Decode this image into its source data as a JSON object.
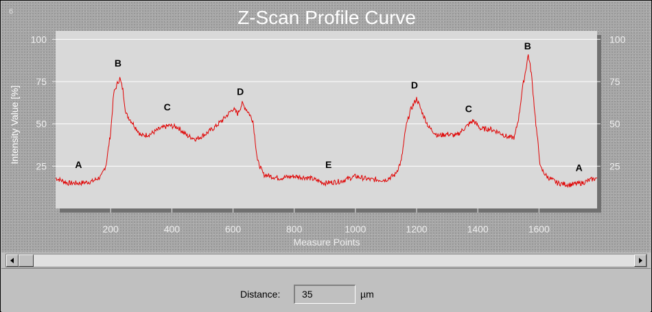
{
  "window": {
    "number": "6"
  },
  "chart_data": {
    "type": "line",
    "title": "Z-Scan Profile Curve",
    "xlabel": "Measure Points",
    "ylabel": "Intensity Value [%]",
    "xlim": [
      20,
      1790
    ],
    "ylim": [
      0,
      105
    ],
    "xticks": [
      200,
      400,
      600,
      800,
      1000,
      1200,
      1400,
      1600
    ],
    "yticks": [
      25,
      50,
      75,
      100
    ],
    "grid": true,
    "right_axis": true,
    "series": [
      {
        "color": "#e00000",
        "x": [
          20,
          60,
          100,
          140,
          170,
          185,
          200,
          210,
          220,
          230,
          240,
          250,
          270,
          300,
          330,
          360,
          390,
          420,
          450,
          480,
          510,
          540,
          570,
          600,
          615,
          630,
          650,
          665,
          680,
          700,
          750,
          800,
          850,
          900,
          950,
          1000,
          1050,
          1100,
          1130,
          1150,
          1165,
          1180,
          1200,
          1220,
          1240,
          1270,
          1300,
          1330,
          1360,
          1385,
          1410,
          1440,
          1470,
          1500,
          1520,
          1535,
          1545,
          1555,
          1565,
          1575,
          1590,
          1605,
          1625,
          1660,
          1700,
          1740,
          1770,
          1790
        ],
        "y": [
          18,
          15,
          15,
          16,
          19,
          26,
          45,
          68,
          73,
          77,
          70,
          56,
          51,
          43,
          44,
          47,
          49,
          48,
          43,
          41,
          44,
          48,
          53,
          59,
          56,
          62,
          57,
          52,
          28,
          20,
          18,
          19,
          18,
          15,
          16,
          19,
          17,
          17,
          20,
          28,
          48,
          58,
          65,
          56,
          48,
          43,
          44,
          43,
          48,
          52,
          47,
          47,
          45,
          42,
          42,
          55,
          70,
          80,
          91,
          80,
          50,
          24,
          19,
          15,
          14,
          15,
          17,
          18
        ]
      }
    ],
    "annotations": [
      {
        "text": "A",
        "x": 95,
        "y": 24
      },
      {
        "text": "B",
        "x": 224,
        "y": 84
      },
      {
        "text": "C",
        "x": 385,
        "y": 58
      },
      {
        "text": "D",
        "x": 624,
        "y": 67
      },
      {
        "text": "E",
        "x": 912,
        "y": 24
      },
      {
        "text": "D",
        "x": 1193,
        "y": 71
      },
      {
        "text": "C",
        "x": 1370,
        "y": 57
      },
      {
        "text": "B",
        "x": 1563,
        "y": 94
      },
      {
        "text": "A",
        "x": 1731,
        "y": 22
      }
    ]
  },
  "scrollbar": {
    "position": 0
  },
  "footer": {
    "distance_label": "Distance:",
    "distance_value": "35",
    "distance_unit": "µm"
  },
  "colors": {
    "plot_bg": "#d9d9d9",
    "curve": "#e00000",
    "panel_bg": "#c0c0c0"
  }
}
